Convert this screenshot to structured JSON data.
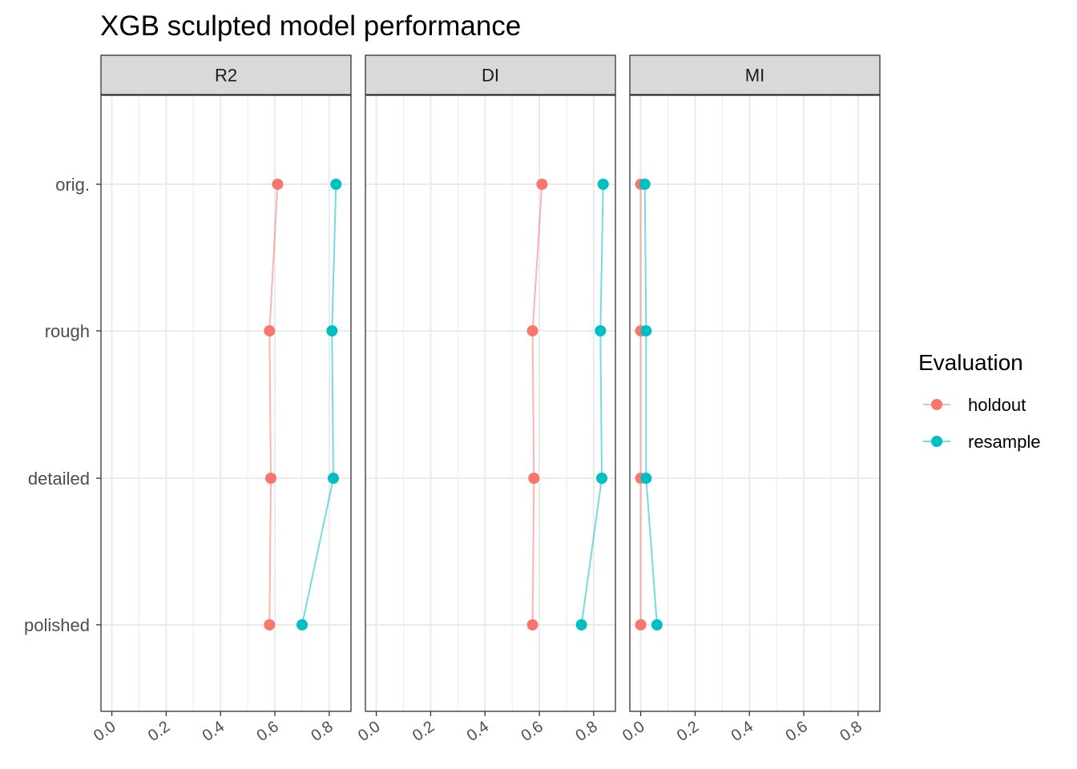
{
  "chart_data": {
    "type": "line",
    "title": "XGB sculpted model performance",
    "xlabel": "",
    "ylabel": "",
    "categories": [
      "orig.",
      "rough",
      "detailed",
      "polished"
    ],
    "xlim": [
      -0.04,
      0.88
    ],
    "x_ticks": [
      "0.0",
      "0.2",
      "0.4",
      "0.6",
      "0.8"
    ],
    "x_tick_values": [
      0,
      0.2,
      0.4,
      0.6,
      0.8
    ],
    "grid": true,
    "legend": {
      "title": "Evaluation",
      "position": "right",
      "entries": [
        "holdout",
        "resample"
      ]
    },
    "colors": {
      "holdout": "#F8766D",
      "resample": "#00BFC4"
    },
    "panels": [
      {
        "name": "R2",
        "series": [
          {
            "name": "holdout",
            "values": [
              0.61,
              0.58,
              0.585,
              0.58
            ]
          },
          {
            "name": "resample",
            "values": [
              0.825,
              0.81,
              0.815,
              0.7
            ]
          }
        ]
      },
      {
        "name": "DI",
        "series": [
          {
            "name": "holdout",
            "values": [
              0.61,
              0.575,
              0.58,
              0.575
            ]
          },
          {
            "name": "resample",
            "values": [
              0.835,
              0.825,
              0.83,
              0.755
            ]
          }
        ]
      },
      {
        "name": "MI",
        "series": [
          {
            "name": "holdout",
            "values": [
              0.0,
              0.0,
              0.0,
              0.0
            ]
          },
          {
            "name": "resample",
            "values": [
              0.015,
              0.02,
              0.02,
              0.06
            ]
          }
        ]
      }
    ]
  }
}
